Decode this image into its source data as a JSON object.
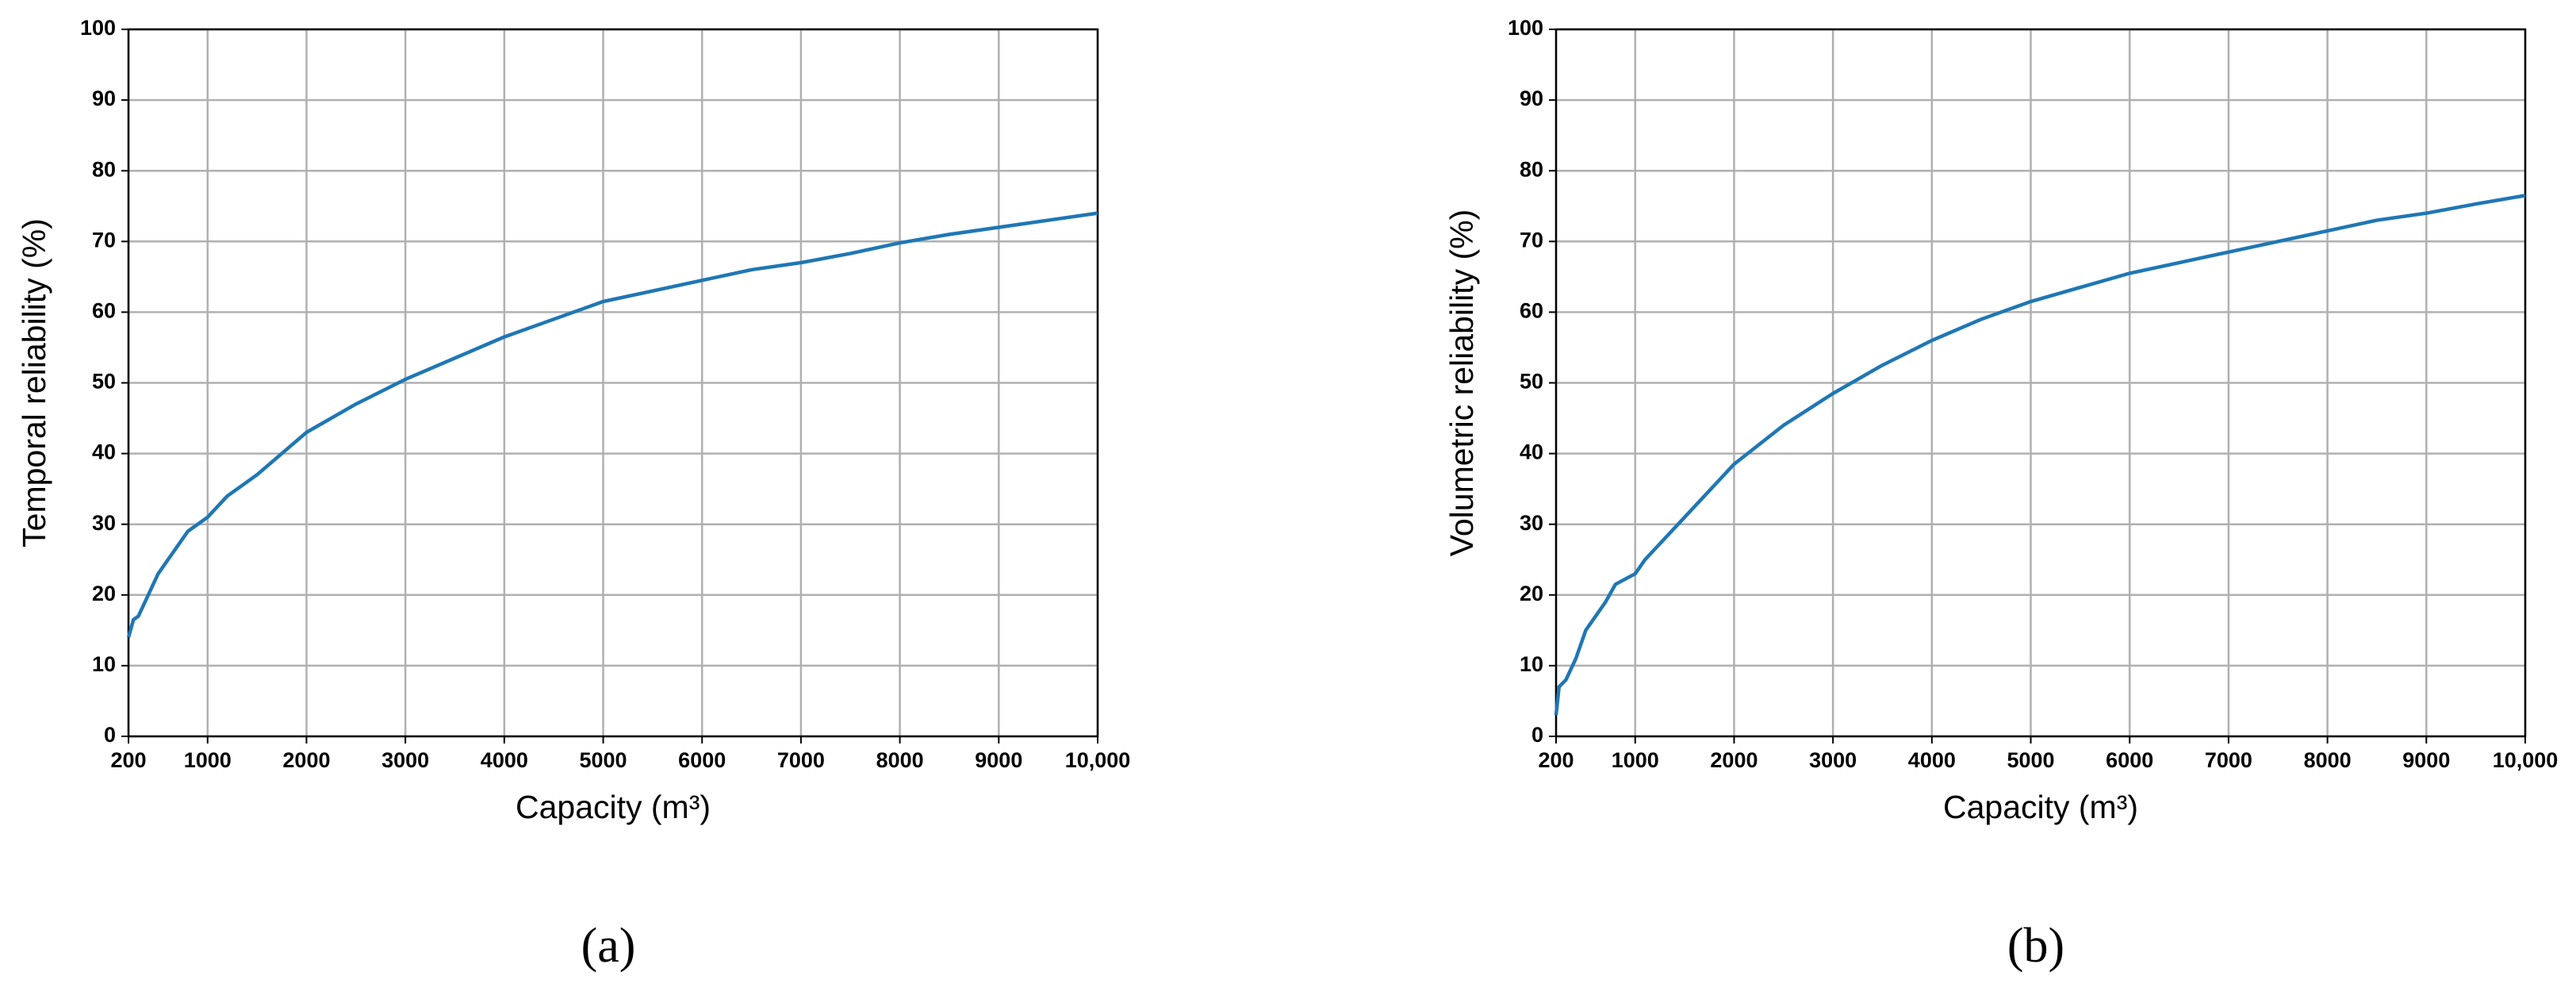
{
  "chart_data": [
    {
      "type": "line",
      "caption": "(a)",
      "x_label": "Capacity (m³)",
      "y_label": "Temporal reliability (%)",
      "xlim": [
        200,
        10000
      ],
      "xticks": [
        200,
        1000,
        2000,
        3000,
        4000,
        5000,
        6000,
        7000,
        8000,
        9000,
        {
          "value": 10000,
          "label": "10,000"
        }
      ],
      "ylim": [
        0,
        100
      ],
      "yticks": [
        0,
        10,
        20,
        30,
        40,
        50,
        60,
        70,
        80,
        90,
        100
      ],
      "grid": true,
      "x": [
        200,
        250,
        300,
        400,
        500,
        600,
        700,
        800,
        1000,
        1200,
        1500,
        2000,
        2500,
        3000,
        3500,
        4000,
        4500,
        5000,
        5500,
        6000,
        6500,
        7000,
        7500,
        8000,
        8500,
        9000,
        9500,
        10000
      ],
      "series": [
        {
          "color": "#1f77b4",
          "values": [
            14,
            16.5,
            17,
            20,
            23,
            25,
            27,
            29,
            31,
            34,
            37,
            43,
            47,
            50.5,
            53.5,
            56.5,
            59,
            61.5,
            63,
            64.5,
            66,
            67,
            68.3,
            69.8,
            71,
            72,
            73,
            74
          ]
        }
      ]
    },
    {
      "type": "line",
      "caption": "(b)",
      "x_label": "Capacity (m³)",
      "y_label": "Volumetric reliability (%)",
      "xlim": [
        200,
        10000
      ],
      "xticks": [
        200,
        1000,
        2000,
        3000,
        4000,
        5000,
        6000,
        7000,
        8000,
        9000,
        {
          "value": 10000,
          "label": "10,000"
        }
      ],
      "ylim": [
        0,
        100
      ],
      "yticks": [
        0,
        10,
        20,
        30,
        40,
        50,
        60,
        70,
        80,
        90,
        100
      ],
      "grid": true,
      "x": [
        200,
        230,
        300,
        400,
        500,
        600,
        700,
        800,
        1000,
        1100,
        1200,
        1500,
        2000,
        2500,
        3000,
        3500,
        4000,
        4500,
        5000,
        5500,
        6000,
        6500,
        7000,
        7500,
        8000,
        8500,
        9000,
        9500,
        10000
      ],
      "series": [
        {
          "color": "#1f77b4",
          "values": [
            3,
            7,
            8,
            11,
            15,
            17,
            19,
            21.5,
            23,
            25,
            26.5,
            31,
            38.5,
            44,
            48.5,
            52.5,
            56,
            59,
            61.5,
            63.5,
            65.5,
            67,
            68.5,
            70,
            71.5,
            73,
            74,
            75.3,
            76.5
          ]
        }
      ]
    }
  ]
}
